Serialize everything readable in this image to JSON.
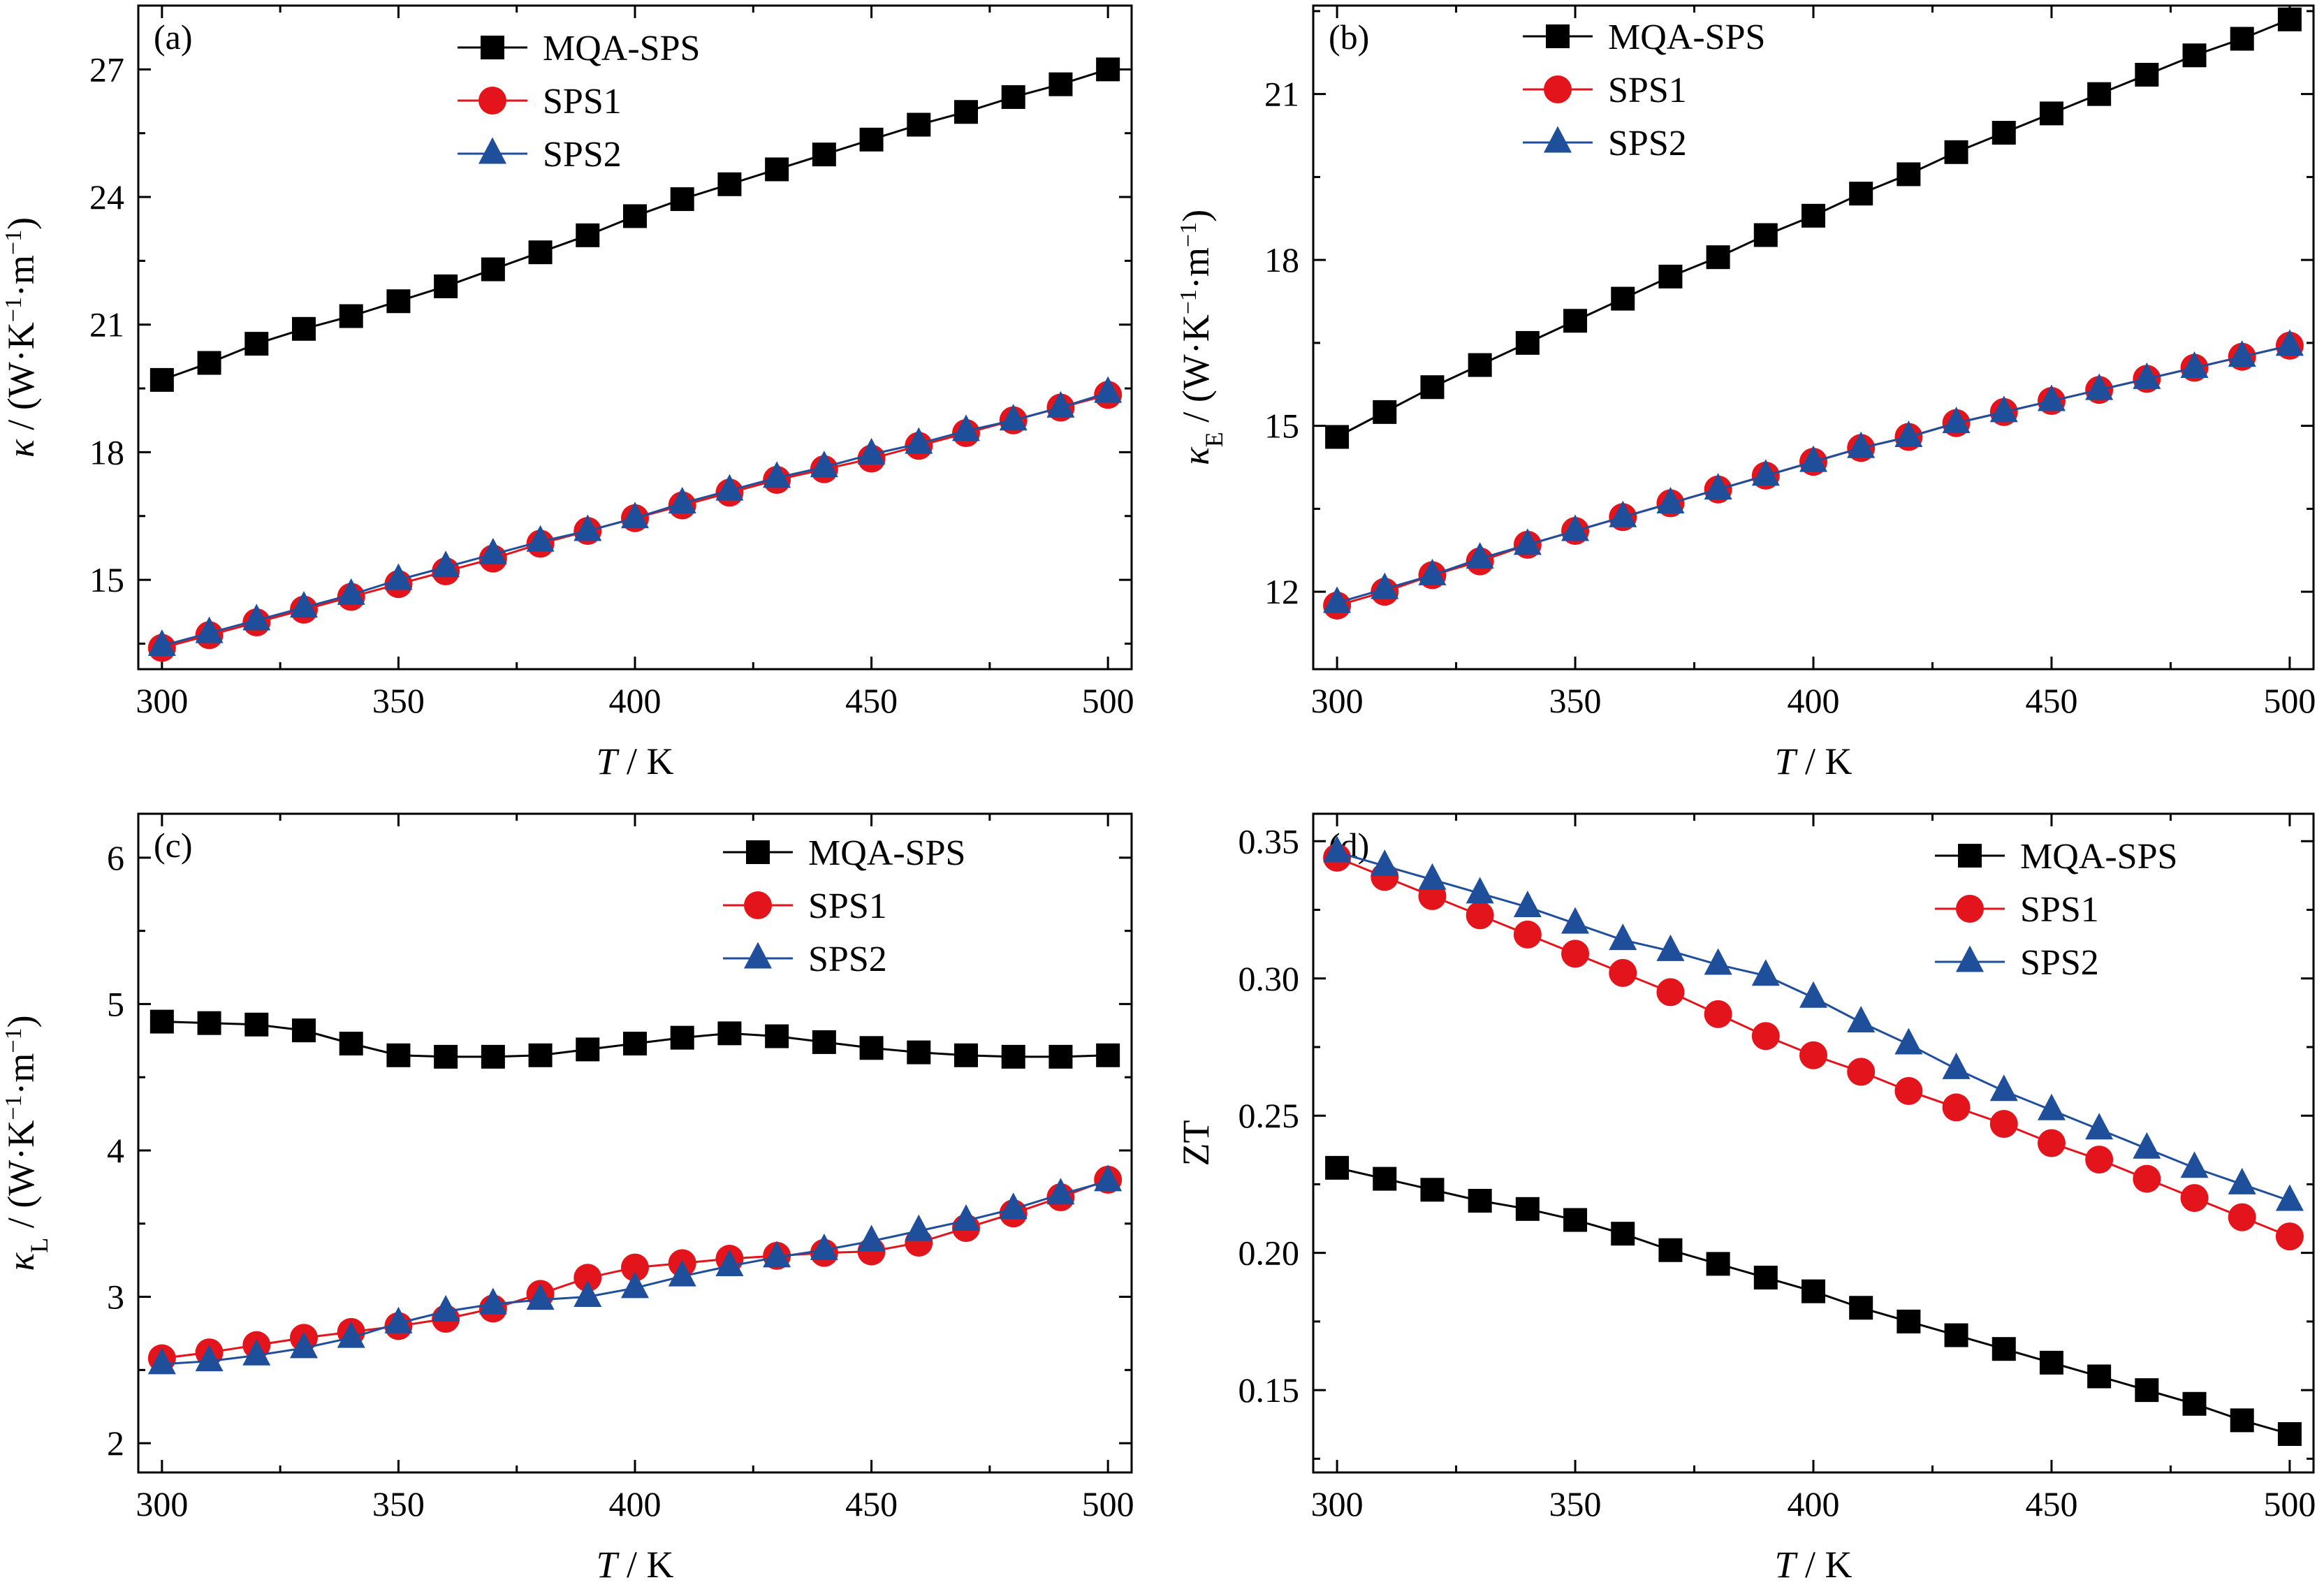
{
  "figure": {
    "x_unit_suffix": " / K"
  },
  "chart_data": [
    {
      "type": "line",
      "panel_tag": "(a)",
      "xlabel": "T",
      "ylabel_symbol": "κ",
      "ylabel_subscript": "",
      "ylabel_unit": " / (W·K",
      "ylabel_exp1": "−1",
      "ylabel_mid": "·m",
      "ylabel_exp2": "−1",
      "ylabel_close": ")",
      "xlim": [
        295,
        505
      ],
      "ylim": [
        12.9,
        28.5
      ],
      "xticks": [
        300,
        350,
        400,
        450,
        500
      ],
      "yticks": [
        15,
        18,
        21,
        24,
        27
      ],
      "yticks_format": "int",
      "legend_position": "top-center",
      "x": [
        300,
        310,
        320,
        330,
        340,
        350,
        360,
        370,
        380,
        390,
        400,
        410,
        420,
        430,
        440,
        450,
        460,
        470,
        480,
        490,
        500
      ],
      "series": [
        {
          "name": "MQA-SPS",
          "marker": "square",
          "color": "#000000",
          "values": [
            19.7,
            20.1,
            20.55,
            20.9,
            21.2,
            21.55,
            21.9,
            22.3,
            22.7,
            23.1,
            23.55,
            23.95,
            24.3,
            24.65,
            25.0,
            25.35,
            25.7,
            26.0,
            26.35,
            26.65,
            27.0
          ]
        },
        {
          "name": "SPS1",
          "marker": "circle",
          "color": "#e3141b",
          "values": [
            13.4,
            13.7,
            14.0,
            14.3,
            14.6,
            14.9,
            15.2,
            15.5,
            15.85,
            16.15,
            16.45,
            16.75,
            17.05,
            17.35,
            17.6,
            17.85,
            18.15,
            18.45,
            18.75,
            19.05,
            19.35
          ]
        },
        {
          "name": "SPS2",
          "marker": "triangle",
          "color": "#1f4e9b",
          "values": [
            13.45,
            13.75,
            14.05,
            14.35,
            14.65,
            15.0,
            15.3,
            15.6,
            15.9,
            16.15,
            16.45,
            16.8,
            17.1,
            17.4,
            17.65,
            17.95,
            18.2,
            18.5,
            18.75,
            19.05,
            19.4
          ]
        }
      ]
    },
    {
      "type": "line",
      "panel_tag": "(b)",
      "xlabel": "T",
      "ylabel_symbol": "κ",
      "ylabel_subscript": "E",
      "ylabel_unit": " / (W·K",
      "ylabel_exp1": "−1",
      "ylabel_mid": "·m",
      "ylabel_exp2": "−1",
      "ylabel_close": ")",
      "xlim": [
        295,
        505
      ],
      "ylim": [
        10.6,
        22.6
      ],
      "xticks": [
        300,
        350,
        400,
        450,
        500
      ],
      "yticks": [
        12,
        15,
        18,
        21
      ],
      "yticks_format": "int",
      "legend_position": "top-left",
      "x": [
        300,
        310,
        320,
        330,
        340,
        350,
        360,
        370,
        380,
        390,
        400,
        410,
        420,
        430,
        440,
        450,
        460,
        470,
        480,
        490,
        500
      ],
      "series": [
        {
          "name": "MQA-SPS",
          "marker": "square",
          "color": "#000000",
          "values": [
            14.8,
            15.25,
            15.7,
            16.1,
            16.5,
            16.9,
            17.3,
            17.7,
            18.05,
            18.45,
            18.8,
            19.2,
            19.55,
            19.95,
            20.3,
            20.65,
            21.0,
            21.35,
            21.7,
            22.0,
            22.35
          ]
        },
        {
          "name": "SPS1",
          "marker": "circle",
          "color": "#e3141b",
          "values": [
            11.75,
            12.0,
            12.3,
            12.55,
            12.85,
            13.1,
            13.35,
            13.6,
            13.85,
            14.1,
            14.35,
            14.6,
            14.8,
            15.05,
            15.25,
            15.45,
            15.65,
            15.85,
            16.05,
            16.25,
            16.45
          ]
        },
        {
          "name": "SPS2",
          "marker": "triangle",
          "color": "#1f4e9b",
          "values": [
            11.8,
            12.05,
            12.3,
            12.6,
            12.85,
            13.1,
            13.35,
            13.6,
            13.85,
            14.1,
            14.35,
            14.6,
            14.8,
            15.05,
            15.25,
            15.45,
            15.65,
            15.85,
            16.05,
            16.25,
            16.45
          ]
        }
      ]
    },
    {
      "type": "line",
      "panel_tag": "(c)",
      "xlabel": "T",
      "ylabel_symbol": "κ",
      "ylabel_subscript": "L",
      "ylabel_unit": " / (W·K",
      "ylabel_exp1": "−1",
      "ylabel_mid": "·m",
      "ylabel_exp2": "−1",
      "ylabel_close": ")",
      "xlim": [
        295,
        505
      ],
      "ylim": [
        1.8,
        6.3
      ],
      "xticks": [
        300,
        350,
        400,
        450,
        500
      ],
      "yticks": [
        2,
        3,
        4,
        5,
        6
      ],
      "yticks_format": "int",
      "legend_position": "top-right",
      "x": [
        300,
        310,
        320,
        330,
        340,
        350,
        360,
        370,
        380,
        390,
        400,
        410,
        420,
        430,
        440,
        450,
        460,
        470,
        480,
        490,
        500
      ],
      "series": [
        {
          "name": "MQA-SPS",
          "marker": "square",
          "color": "#000000",
          "values": [
            4.88,
            4.87,
            4.86,
            4.82,
            4.73,
            4.65,
            4.64,
            4.64,
            4.65,
            4.69,
            4.73,
            4.77,
            4.8,
            4.78,
            4.74,
            4.7,
            4.67,
            4.65,
            4.64,
            4.64,
            4.65
          ]
        },
        {
          "name": "SPS1",
          "marker": "circle",
          "color": "#e3141b",
          "values": [
            2.58,
            2.62,
            2.67,
            2.72,
            2.76,
            2.8,
            2.85,
            2.92,
            3.02,
            3.13,
            3.2,
            3.23,
            3.26,
            3.28,
            3.3,
            3.31,
            3.37,
            3.47,
            3.57,
            3.68,
            3.8
          ]
        },
        {
          "name": "SPS2",
          "marker": "triangle",
          "color": "#1f4e9b",
          "values": [
            2.54,
            2.56,
            2.6,
            2.65,
            2.72,
            2.82,
            2.9,
            2.95,
            2.98,
            3.0,
            3.06,
            3.14,
            3.21,
            3.27,
            3.32,
            3.38,
            3.45,
            3.52,
            3.6,
            3.7,
            3.79
          ]
        }
      ]
    },
    {
      "type": "line",
      "panel_tag": "(d)",
      "xlabel": "T",
      "ylabel_symbol": "ZT",
      "ylabel_subscript": "",
      "ylabel_unit": "",
      "ylabel_exp1": "",
      "ylabel_mid": "",
      "ylabel_exp2": "",
      "ylabel_close": "",
      "xlim": [
        295,
        505
      ],
      "ylim": [
        0.12,
        0.36
      ],
      "xticks": [
        300,
        350,
        400,
        450,
        500
      ],
      "yticks": [
        0.15,
        0.2,
        0.25,
        0.3,
        0.35
      ],
      "yticks_format": "2dp",
      "legend_position": "top-right",
      "x": [
        300,
        310,
        320,
        330,
        340,
        350,
        360,
        370,
        380,
        390,
        400,
        410,
        420,
        430,
        440,
        450,
        460,
        470,
        480,
        490,
        500
      ],
      "series": [
        {
          "name": "MQA-SPS",
          "marker": "square",
          "color": "#000000",
          "values": [
            0.231,
            0.227,
            0.223,
            0.219,
            0.216,
            0.212,
            0.207,
            0.201,
            0.196,
            0.191,
            0.186,
            0.18,
            0.175,
            0.17,
            0.165,
            0.16,
            0.155,
            0.15,
            0.145,
            0.139,
            0.134
          ]
        },
        {
          "name": "SPS1",
          "marker": "circle",
          "color": "#e3141b",
          "values": [
            0.344,
            0.337,
            0.33,
            0.323,
            0.316,
            0.309,
            0.302,
            0.295,
            0.287,
            0.279,
            0.272,
            0.266,
            0.259,
            0.253,
            0.247,
            0.24,
            0.234,
            0.227,
            0.22,
            0.213,
            0.206
          ]
        },
        {
          "name": "SPS2",
          "marker": "triangle",
          "color": "#1f4e9b",
          "values": [
            0.346,
            0.341,
            0.336,
            0.331,
            0.326,
            0.32,
            0.314,
            0.31,
            0.305,
            0.301,
            0.293,
            0.284,
            0.276,
            0.267,
            0.259,
            0.252,
            0.245,
            0.238,
            0.231,
            0.225,
            0.219
          ]
        }
      ]
    }
  ]
}
